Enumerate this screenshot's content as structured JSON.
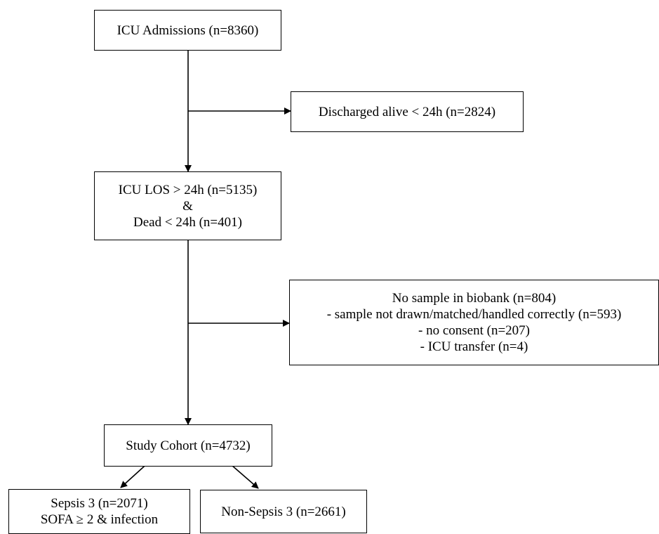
{
  "flowchart": {
    "admissions": {
      "lines": [
        "ICU Admissions (n=8360)"
      ]
    },
    "discharged": {
      "lines": [
        "Discharged alive < 24h (n=2824)"
      ]
    },
    "los": {
      "lines": [
        "ICU LOS > 24h (n=5135)",
        "&",
        "Dead < 24h (n=401)"
      ]
    },
    "excluded": {
      "lines": [
        "No sample in biobank (n=804)",
        "- sample not drawn/matched/handled correctly (n=593)",
        "- no consent (n=207)",
        "- ICU transfer (n=4)"
      ]
    },
    "cohort": {
      "lines": [
        "Study Cohort (n=4732)"
      ]
    },
    "sepsis": {
      "lines": [
        "Sepsis 3 (n=2071)",
        "SOFA ≥ 2 & infection"
      ]
    },
    "non_sepsis": {
      "lines": [
        "Non-Sepsis 3 (n=2661)"
      ]
    }
  },
  "colors": {
    "stroke": "#000000",
    "background": "#ffffff"
  }
}
